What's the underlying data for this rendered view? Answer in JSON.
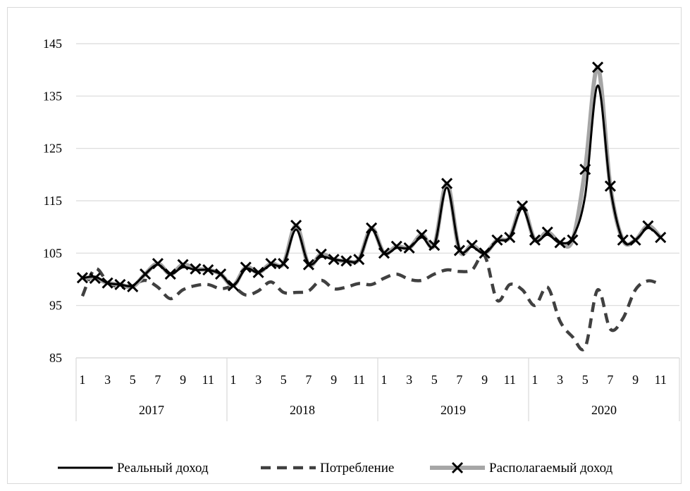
{
  "chart_data": {
    "type": "line",
    "title": "",
    "xlabel": "",
    "ylabel": "",
    "ylim": [
      85,
      145
    ],
    "yticks": [
      85,
      95,
      105,
      115,
      125,
      135,
      145
    ],
    "grid": "horizontal",
    "legend_position": "bottom",
    "x_tick_labels": [
      "1",
      "3",
      "5",
      "7",
      "9",
      "11",
      "1",
      "3",
      "5",
      "7",
      "9",
      "11",
      "1",
      "3",
      "5",
      "7",
      "9",
      "11",
      "1",
      "3",
      "5",
      "7",
      "9",
      "11"
    ],
    "years": [
      "2017",
      "2018",
      "2019",
      "2020"
    ],
    "series": [
      {
        "name": "Реальный доход",
        "style": "solid",
        "color": "#000000",
        "values": [
          100.2,
          100.5,
          99.3,
          99.0,
          98.8,
          101.0,
          102.8,
          101.0,
          102.3,
          101.8,
          101.8,
          101.0,
          98.8,
          102.0,
          101.3,
          102.8,
          103.0,
          109.5,
          103.0,
          104.3,
          103.8,
          103.5,
          103.8,
          109.5,
          105.0,
          106.0,
          106.0,
          108.0,
          106.5,
          117.5,
          105.8,
          106.2,
          105.0,
          107.3,
          108.0,
          113.5,
          107.5,
          108.5,
          107.0,
          108.0,
          116.0,
          137.0,
          117.5,
          107.5,
          107.5,
          109.8,
          108.0
        ]
      },
      {
        "name": "Потребление",
        "style": "dashed",
        "color": "#404040",
        "values": [
          96.8,
          102.0,
          99.5,
          98.5,
          99.0,
          99.8,
          98.5,
          96.3,
          98.0,
          98.8,
          99.0,
          98.2,
          98.5,
          97.0,
          97.8,
          99.5,
          97.5,
          97.5,
          97.8,
          99.8,
          98.2,
          98.5,
          99.2,
          99.0,
          100.2,
          101.0,
          100.0,
          99.8,
          101.0,
          101.8,
          101.5,
          101.8,
          104.5,
          96.0,
          99.0,
          98.0,
          95.0,
          98.5,
          92.0,
          89.0,
          87.0,
          98.0,
          90.5,
          92.5,
          98.0,
          99.7,
          99.0
        ]
      },
      {
        "name": "Располагаемый доход",
        "style": "solid-marker",
        "color": "#a6a6a6",
        "marker_color": "#000000",
        "values": [
          100.3,
          100.2,
          99.3,
          99.0,
          98.6,
          101.0,
          103.0,
          101.0,
          102.8,
          102.0,
          101.8,
          101.0,
          98.8,
          102.3,
          101.3,
          103.0,
          103.0,
          110.3,
          102.8,
          104.8,
          103.8,
          103.5,
          103.8,
          109.8,
          105.0,
          106.3,
          106.0,
          108.5,
          106.5,
          118.3,
          105.5,
          106.5,
          105.0,
          107.5,
          108.0,
          114.0,
          107.5,
          109.0,
          107.0,
          107.5,
          121.0,
          140.5,
          117.8,
          107.5,
          107.5,
          110.2,
          108.0
        ]
      }
    ]
  }
}
